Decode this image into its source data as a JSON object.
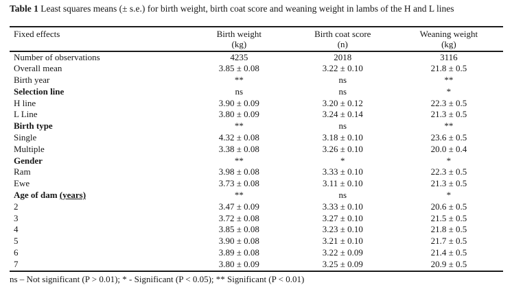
{
  "title": {
    "label": "Table 1",
    "text": " Least squares means (± s.e.) for birth weight, birth coat score and weaning weight in lambs of the H and L lines"
  },
  "table": {
    "col_headers": [
      {
        "line1": "Fixed effects",
        "line2": ""
      },
      {
        "line1": "Birth weight",
        "line2": "(kg)"
      },
      {
        "line1": "Birth coat score",
        "line2": "(n)"
      },
      {
        "line1": "Weaning weight",
        "line2": "(kg)"
      }
    ],
    "rows": [
      {
        "label": "Number of observations",
        "bold": false,
        "values": [
          "4235",
          "2018",
          "3116"
        ]
      },
      {
        "label": "Overall mean",
        "bold": false,
        "values": [
          "3.85 ± 0.08",
          "3.22 ± 0.10",
          "21.8 ± 0.5"
        ]
      },
      {
        "label": "Birth year",
        "bold": false,
        "values": [
          "**",
          "ns",
          "**"
        ]
      },
      {
        "label": "Selection line",
        "bold": true,
        "values": [
          "ns",
          "ns",
          "*"
        ]
      },
      {
        "label": "H line",
        "bold": false,
        "values": [
          "3.90 ± 0.09",
          "3.20 ± 0.12",
          "22.3 ± 0.5"
        ]
      },
      {
        "label": "L Line",
        "bold": false,
        "values": [
          "3.80 ± 0.09",
          "3.24 ± 0.14",
          "21.3 ± 0.5"
        ]
      },
      {
        "label": "Birth type",
        "bold": true,
        "values": [
          "**",
          "ns",
          "**"
        ]
      },
      {
        "label": "Single",
        "bold": false,
        "values": [
          "4.32 ± 0.08",
          "3.18 ± 0.10",
          "23.6 ± 0.5"
        ]
      },
      {
        "label": "Multiple",
        "bold": false,
        "values": [
          "3.38 ± 0.08",
          "3.26 ± 0.10",
          "20.0 ± 0.4"
        ]
      },
      {
        "label": "Gender",
        "bold": true,
        "values": [
          "**",
          "*",
          "*"
        ]
      },
      {
        "label": "Ram",
        "bold": false,
        "values": [
          "3.98 ± 0.08",
          "3.33 ± 0.10",
          "22.3 ± 0.5"
        ]
      },
      {
        "label": "Ewe",
        "bold": false,
        "values": [
          "3.73 ± 0.08",
          "3.11 ± 0.10",
          "21.3 ± 0.5"
        ]
      },
      {
        "label": "Age of dam ",
        "label_underlined": "(years)",
        "bold": true,
        "values": [
          "**",
          "ns",
          "*"
        ]
      },
      {
        "label": "2",
        "bold": false,
        "values": [
          "3.47 ± 0.09",
          "3.33 ± 0.10",
          "20.6 ± 0.5"
        ]
      },
      {
        "label": "3",
        "bold": false,
        "values": [
          "3.72 ± 0.08",
          "3.27 ± 0.10",
          "21.5 ± 0.5"
        ]
      },
      {
        "label": "4",
        "bold": false,
        "values": [
          "3.85 ± 0.08",
          "3.23 ± 0.10",
          "21.8 ± 0.5"
        ]
      },
      {
        "label": "5",
        "bold": false,
        "values": [
          "3.90 ± 0.08",
          "3.21 ± 0.10",
          "21.7 ± 0.5"
        ]
      },
      {
        "label": "6",
        "bold": false,
        "values": [
          "3.89 ± 0.08",
          "3.22 ± 0.09",
          "21.4 ± 0.5"
        ]
      },
      {
        "label": "7",
        "bold": false,
        "values": [
          "3.80 ± 0.09",
          "3.25 ± 0.09",
          "20.9 ± 0.5"
        ]
      }
    ]
  },
  "footnote": "ns – Not significant (P > 0.01); * - Significant (P < 0.05); ** Significant (P < 0.01)"
}
